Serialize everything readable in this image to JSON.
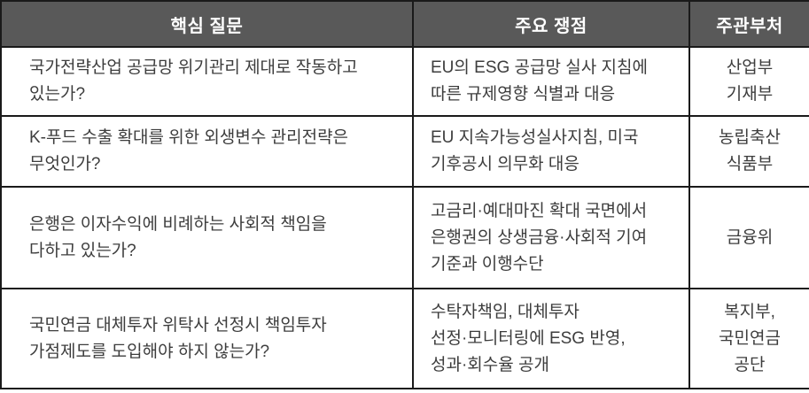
{
  "colors": {
    "header_bg": "#595959",
    "header_text": "#ffffff",
    "border": "#1a1a1a",
    "body_text": "#3d3d3d",
    "page_bg": "#ffffff"
  },
  "table": {
    "headers": {
      "question": "핵심 질문",
      "issue": "주요 쟁점",
      "ministry": "주관부처"
    },
    "rows": [
      {
        "question": "국가전략산업 공급망 위기관리 제대로 작동하고\n있는가?",
        "issue": "EU의 ESG 공급망 실사 지침에\n따른 규제영향 식별과 대응",
        "ministry": "산업부\n기재부"
      },
      {
        "question": "K-푸드 수출 확대를 위한 외생변수 관리전략은\n무엇인가?",
        "issue": "EU 지속가능성실사지침, 미국\n기후공시 의무화 대응",
        "ministry": "농립축산\n식품부"
      },
      {
        "question": "은행은 이자수익에 비례하는 사회적 책임을\n다하고 있는가?",
        "issue": "고금리·예대마진 확대 국면에서\n은행권의 상생금융·사회적 기여\n기준과 이행수단",
        "ministry": "금융위"
      },
      {
        "question": "국민연금 대체투자 위탁사 선정시 책임투자\n가점제도를 도입해야 하지 않는가?",
        "issue": "수탁자책임, 대체투자\n선정·모니터링에 ESG 반영,\n성과·회수율 공개",
        "ministry": "복지부,\n국민연금\n공단"
      }
    ]
  }
}
